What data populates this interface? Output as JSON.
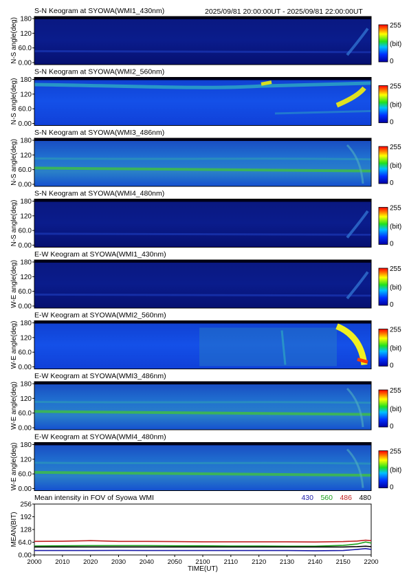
{
  "header": {
    "datetime": "2025/09/81 20:00:00UT - 2025/09/81 22:00:00UT"
  },
  "panels": [
    {
      "title": "S-N Keogram at SYOWA(WMI1_430nm)",
      "ylabel": "N-S angle(deg)",
      "variant": "faint"
    },
    {
      "title": "S-N Keogram at SYOWA(WMI2_560nm)",
      "ylabel": "N-S angle(deg)",
      "variant": "sn560"
    },
    {
      "title": "S-N Keogram at SYOWA(WMI3_486nm)",
      "ylabel": "N-S angle(deg)",
      "variant": "bright"
    },
    {
      "title": "S-N Keogram at SYOWA(WMI4_480nm)",
      "ylabel": "N-S angle(deg)",
      "variant": "faint"
    },
    {
      "title": "E-W Keogram at SYOWA(WMI1_430nm)",
      "ylabel": "W-E angle(deg)",
      "variant": "faint"
    },
    {
      "title": "E-W Keogram at SYOWA(WMI2_560nm)",
      "ylabel": "W-E angle(deg)",
      "variant": "ew560"
    },
    {
      "title": "E-W Keogram at SYOWA(WMI3_486nm)",
      "ylabel": "W-E angle(deg)",
      "variant": "bright"
    },
    {
      "title": "E-W Keogram at SYOWA(WMI4_480nm)",
      "ylabel": "W-E angle(deg)",
      "variant": "bright"
    }
  ],
  "keogram_yticks": [
    "180",
    "120",
    "60.0",
    "0.00"
  ],
  "colorbar": {
    "max": "255",
    "unit": "(bit)",
    "min": "0"
  },
  "chart_data": {
    "type": "line",
    "title": "Mean intensity in FOV of Syowa WMI",
    "xlabel": "TIME(UT)",
    "ylabel": "MEAN(BIT)",
    "xticks": [
      "2000",
      "2010",
      "2020",
      "2030",
      "2040",
      "2050",
      "2100",
      "2110",
      "2120",
      "2130",
      "2140",
      "2150",
      "2200"
    ],
    "yticks": [
      "256",
      "192",
      "128",
      "64.0",
      "0.00"
    ],
    "ylim": [
      0,
      256
    ],
    "x": [
      "2000",
      "2010",
      "2020",
      "2030",
      "2040",
      "2050",
      "2100",
      "2110",
      "2120",
      "2130",
      "2140",
      "2150",
      "2155",
      "2158",
      "2200"
    ],
    "series": [
      {
        "name": "430",
        "color": "#1a1aa8",
        "values": [
          22,
          22,
          22,
          23,
          22,
          22,
          22,
          22,
          22,
          22,
          21,
          22,
          28,
          32,
          28
        ]
      },
      {
        "name": "560",
        "color": "#1aa01a",
        "values": [
          45,
          46,
          47,
          47,
          47,
          46,
          46,
          45,
          45,
          44,
          44,
          48,
          55,
          65,
          60
        ]
      },
      {
        "name": "486",
        "color": "#c02020",
        "values": [
          68,
          69,
          72,
          68,
          68,
          67,
          66,
          66,
          66,
          66,
          65,
          67,
          70,
          74,
          72
        ]
      },
      {
        "name": "480",
        "color": "#000000",
        "values": [
          40,
          40,
          40,
          40,
          40,
          40,
          40,
          40,
          40,
          40,
          40,
          40,
          42,
          44,
          42
        ]
      }
    ]
  }
}
